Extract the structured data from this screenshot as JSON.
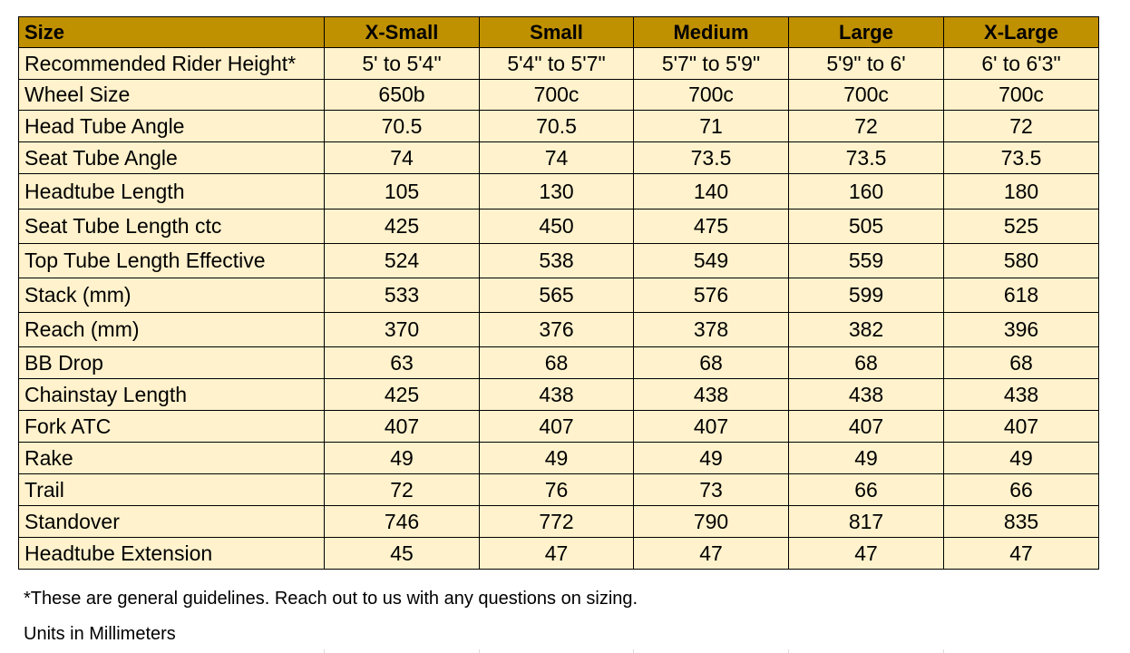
{
  "header": [
    "Size",
    "X-Small",
    "Small",
    "Medium",
    "Large",
    "X-Large"
  ],
  "rows": [
    [
      "Recommended Rider Height*",
      "5' to 5'4\"",
      "5'4\" to 5'7\"",
      "5'7\" to 5'9\"",
      "5'9\" to 6'",
      "6' to 6'3\""
    ],
    [
      "Wheel Size",
      "650b",
      "700c",
      "700c",
      "700c",
      "700c"
    ],
    [
      "Head Tube Angle",
      "70.5",
      "70.5",
      "71",
      "72",
      "72"
    ],
    [
      "Seat Tube Angle",
      "74",
      "74",
      "73.5",
      "73.5",
      "73.5"
    ],
    [
      "Headtube Length",
      "105",
      "130",
      "140",
      "160",
      "180"
    ],
    [
      "Seat Tube Length ctc",
      "425",
      "450",
      "475",
      "505",
      "525"
    ],
    [
      "Top Tube Length Effective",
      "524",
      "538",
      "549",
      "559",
      "580"
    ],
    [
      "Stack (mm)",
      "533",
      "565",
      "576",
      "599",
      "618"
    ],
    [
      "Reach (mm)",
      "370",
      "376",
      "378",
      "382",
      "396"
    ],
    [
      "BB Drop",
      "63",
      "68",
      "68",
      "68",
      "68"
    ],
    [
      "Chainstay Length",
      "425",
      "438",
      "438",
      "438",
      "438"
    ],
    [
      "Fork ATC",
      "407",
      "407",
      "407",
      "407",
      "407"
    ],
    [
      "Rake",
      "49",
      "49",
      "49",
      "49",
      "49"
    ],
    [
      "Trail",
      "72",
      "76",
      "73",
      "66",
      "66"
    ],
    [
      "Standover",
      "746",
      "772",
      "790",
      "817",
      "835"
    ],
    [
      "Headtube Extension",
      "45",
      "47",
      "47",
      "47",
      "47"
    ]
  ],
  "footnote": "*These are general guidelines. Reach out to us with any questions on sizing.",
  "units": "Units in Millimeters",
  "colors": {
    "header_bg": "#BF9000",
    "body_bg": "#FFF2CC"
  }
}
